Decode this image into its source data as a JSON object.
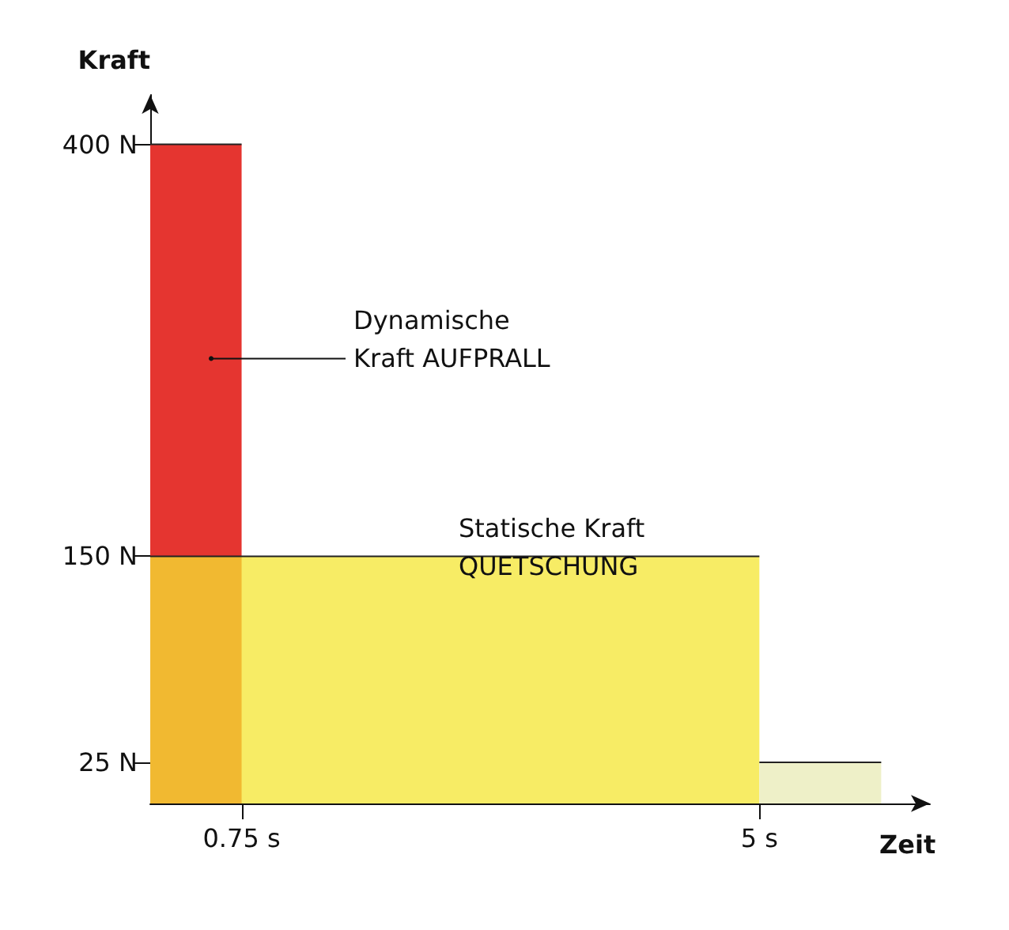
{
  "chart_data": {
    "type": "area",
    "xlabel": "Zeit",
    "ylabel": "Kraft",
    "series": [
      {
        "color": "#e53530",
        "x": [
          0,
          0.75
        ],
        "values": [
          400,
          400
        ]
      },
      {
        "color": "#f4e532",
        "x": [
          0,
          5
        ],
        "values": [
          150,
          150
        ]
      },
      {
        "color": "#eef0c8",
        "x": [
          5,
          6
        ],
        "values": [
          25,
          25
        ]
      }
    ],
    "xlim": [
      0,
      6.4
    ],
    "xticks": [
      {
        "value": 0.75,
        "label": "0.75 s"
      },
      {
        "value": 5,
        "label": "5 s"
      }
    ],
    "ylim": [
      0,
      430
    ],
    "yticks": [
      {
        "value": 25,
        "label": "25 N"
      },
      {
        "value": 150,
        "label": "150 N"
      },
      {
        "value": 400,
        "label": "400 N"
      }
    ],
    "annotations": [
      {
        "text": "Dynamische\nKraft AUFPRALL",
        "x": 0.5,
        "y": 270
      },
      "Statische Kraft\nQUETSCHUNG"
    ],
    "tick_labels": null
  }
}
